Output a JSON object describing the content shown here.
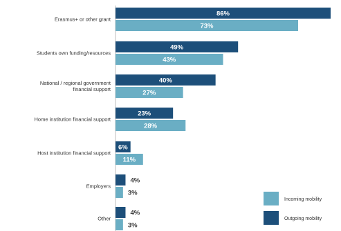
{
  "chart_data": {
    "type": "bar",
    "orientation": "horizontal",
    "categories": [
      "Erasmus+ or other grant",
      "Students own funding/resources",
      "National / regional government financial support",
      "Home institution financial support",
      "Host institution financial support",
      "Employers",
      "Other"
    ],
    "category_lines": [
      [
        "Erasmus+ or other grant"
      ],
      [
        "Students own funding/resources"
      ],
      [
        "National / regional government",
        "financial support"
      ],
      [
        "Home institution financial support"
      ],
      [
        "Host institution financial support"
      ],
      [
        "Employers"
      ],
      [
        "Other"
      ]
    ],
    "series": [
      {
        "name": "Outgoing mobility",
        "color": "#1d4f7a",
        "values": [
          86,
          49,
          40,
          23,
          6,
          4,
          4
        ],
        "labels": [
          "86%",
          "49%",
          "40%",
          "23%",
          "6%",
          "4%",
          "4%"
        ]
      },
      {
        "name": "Incoming mobility",
        "color": "#6aaec4",
        "values": [
          73,
          43,
          27,
          28,
          11,
          3,
          3
        ],
        "labels": [
          "73%",
          "43%",
          "27%",
          "28%",
          "11%",
          "3%",
          "3%"
        ]
      }
    ],
    "xlim": [
      0,
      86
    ],
    "legend_position": "bottom-right",
    "grid": false
  }
}
